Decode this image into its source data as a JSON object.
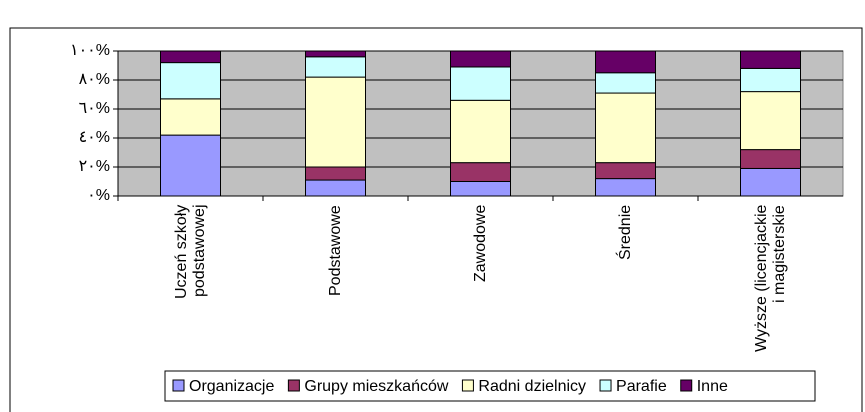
{
  "chart_data": {
    "type": "stacked_bar_percent",
    "categories": [
      "Uczeń szkoły podstawowej",
      "Podstawowe",
      "Zawodowe",
      "Średnie",
      "Wyższe (licencjackie i magisterskie"
    ],
    "series": [
      {
        "name": "Organizacje",
        "color": "#9999ff",
        "values": [
          42,
          11,
          10,
          12,
          19
        ]
      },
      {
        "name": "Grupy mieszkańców",
        "color": "#993366",
        "values": [
          0,
          9,
          13,
          11,
          13
        ]
      },
      {
        "name": "Radni dzielnicy",
        "color": "#ffffcc",
        "values": [
          25,
          62,
          43,
          48,
          40
        ]
      },
      {
        "name": "Parafie",
        "color": "#ccffff",
        "values": [
          25,
          14,
          23,
          14,
          16
        ]
      },
      {
        "name": "Inne",
        "color": "#660066",
        "values": [
          8,
          4,
          11,
          15,
          12
        ]
      }
    ],
    "ylim": [
      0,
      100
    ],
    "yticks": [
      {
        "value": 0,
        "label": "٠%"
      },
      {
        "value": 20,
        "label": "٢٠%"
      },
      {
        "value": 40,
        "label": "٤٠%"
      },
      {
        "value": 60,
        "label": "٦٠%"
      },
      {
        "value": 80,
        "label": "٨٠%"
      },
      {
        "value": 100,
        "label": "١٠٠%"
      }
    ],
    "grid": true,
    "legend": "bottom"
  }
}
